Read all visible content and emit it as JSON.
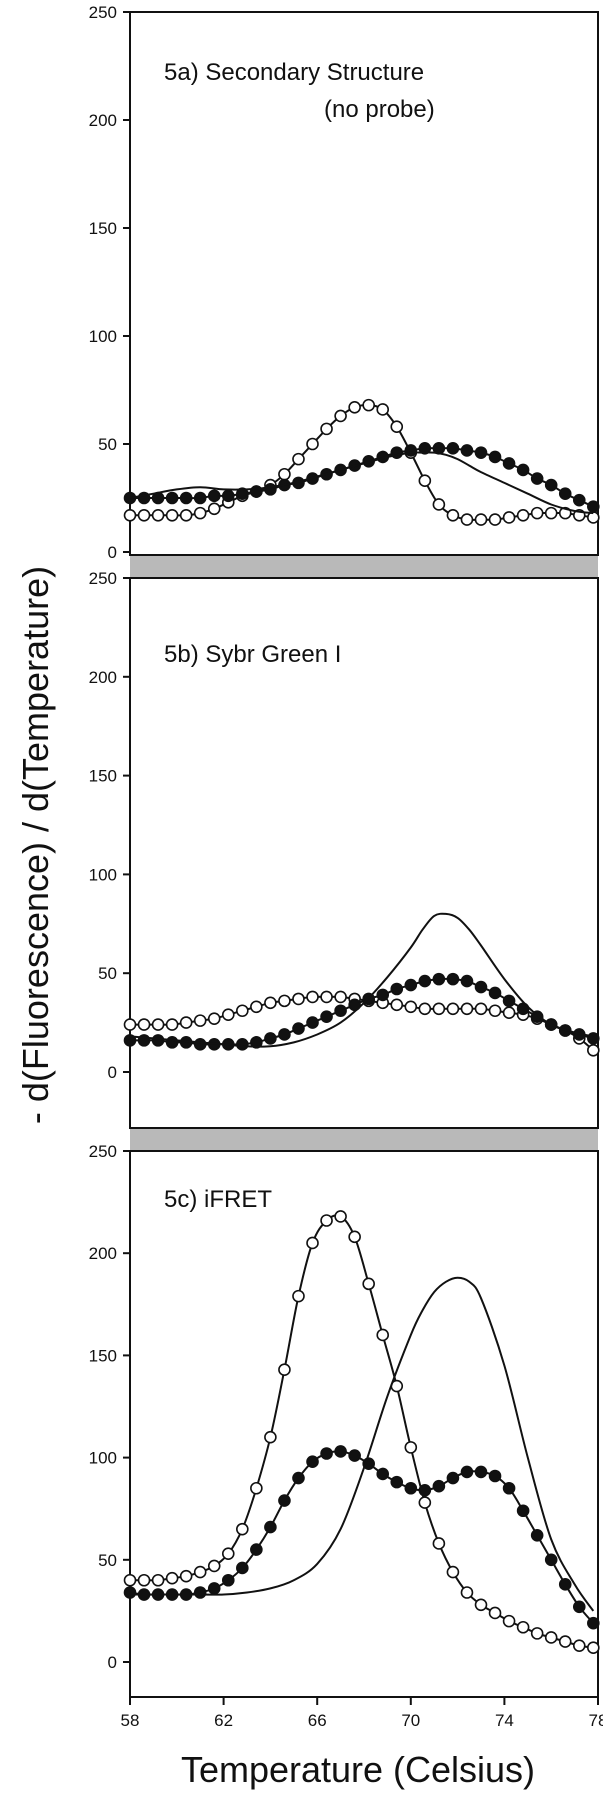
{
  "figure": {
    "ylabel": "- d(Fluorescence) / d(Temperature)",
    "xlabel": "Temperature (Celsius)"
  },
  "chart_data": [
    {
      "type": "line",
      "title": "5a) Secondary Structure",
      "subtitle": "(no probe)",
      "ylim": [
        0,
        250
      ],
      "xlim": [
        58,
        78
      ],
      "yticks": [
        0,
        50,
        100,
        150,
        200,
        250
      ],
      "xticks": [],
      "series": [
        {
          "marker": "open-circle",
          "x": [
            58,
            58.6,
            59.2,
            59.8,
            60.4,
            61,
            61.6,
            62.2,
            62.8,
            63.4,
            64,
            64.6,
            65.2,
            65.8,
            66.4,
            67,
            67.6,
            68.2,
            68.8,
            69.4,
            70,
            70.6,
            71.2,
            71.8,
            72.4,
            73,
            73.6,
            74.2,
            74.8,
            75.4,
            76,
            76.6,
            77.2,
            77.8
          ],
          "values": [
            17,
            17,
            17,
            17,
            17,
            18,
            20,
            23,
            26,
            28,
            31,
            36,
            43,
            50,
            57,
            63,
            67,
            68,
            66,
            58,
            46,
            33,
            22,
            17,
            15,
            15,
            15,
            16,
            17,
            18,
            18,
            18,
            17,
            16
          ]
        },
        {
          "marker": "filled-circle",
          "x": [
            58,
            58.6,
            59.2,
            59.8,
            60.4,
            61,
            61.6,
            62.2,
            62.8,
            63.4,
            64,
            64.6,
            65.2,
            65.8,
            66.4,
            67,
            67.6,
            68.2,
            68.8,
            69.4,
            70,
            70.6,
            71.2,
            71.8,
            72.4,
            73,
            73.6,
            74.2,
            74.8,
            75.4,
            76,
            76.6,
            77.2,
            77.8
          ],
          "values": [
            25,
            25,
            25,
            25,
            25,
            25,
            26,
            26,
            27,
            28,
            29,
            31,
            32,
            34,
            36,
            38,
            40,
            42,
            44,
            46,
            47,
            48,
            48,
            48,
            47,
            46,
            44,
            41,
            38,
            34,
            31,
            27,
            24,
            21
          ]
        },
        {
          "marker": "none",
          "x": [
            58,
            59,
            60,
            61,
            62,
            63,
            64,
            65,
            66,
            67,
            68,
            69,
            70,
            70.5,
            71,
            71.5,
            72,
            72.5,
            73,
            74,
            75,
            76,
            77,
            77.8
          ],
          "values": [
            25,
            27,
            29,
            30,
            29,
            29,
            30,
            32,
            35,
            38,
            41,
            44,
            46,
            46,
            46,
            45,
            43,
            40,
            37,
            32,
            27,
            22,
            19,
            18
          ]
        }
      ]
    },
    {
      "type": "line",
      "title": "5b) Sybr Green I",
      "ylim": [
        0,
        250
      ],
      "xlim": [
        58,
        78
      ],
      "yticks": [
        0,
        50,
        100,
        150,
        200,
        250
      ],
      "xticks": [],
      "series": [
        {
          "marker": "open-circle",
          "x": [
            58,
            58.6,
            59.2,
            59.8,
            60.4,
            61,
            61.6,
            62.2,
            62.8,
            63.4,
            64,
            64.6,
            65.2,
            65.8,
            66.4,
            67,
            67.6,
            68.2,
            68.8,
            69.4,
            70,
            70.6,
            71.2,
            71.8,
            72.4,
            73,
            73.6,
            74.2,
            74.8,
            75.4,
            76,
            76.6,
            77.2,
            77.8
          ],
          "values": [
            24,
            24,
            24,
            24,
            25,
            26,
            27,
            29,
            31,
            33,
            35,
            36,
            37,
            38,
            38,
            38,
            37,
            36,
            35,
            34,
            33,
            32,
            32,
            32,
            32,
            32,
            31,
            30,
            29,
            27,
            24,
            21,
            17,
            11
          ]
        },
        {
          "marker": "filled-circle",
          "x": [
            58,
            58.6,
            59.2,
            59.8,
            60.4,
            61,
            61.6,
            62.2,
            62.8,
            63.4,
            64,
            64.6,
            65.2,
            65.8,
            66.4,
            67,
            67.6,
            68.2,
            68.8,
            69.4,
            70,
            70.6,
            71.2,
            71.8,
            72.4,
            73,
            73.6,
            74.2,
            74.8,
            75.4,
            76,
            76.6,
            77.2,
            77.8
          ],
          "values": [
            16,
            16,
            16,
            15,
            15,
            14,
            14,
            14,
            14,
            15,
            17,
            19,
            22,
            25,
            28,
            31,
            34,
            37,
            39,
            42,
            44,
            46,
            47,
            47,
            46,
            43,
            40,
            36,
            32,
            28,
            24,
            21,
            19,
            17
          ]
        },
        {
          "marker": "none",
          "x": [
            58,
            59,
            60,
            61,
            62,
            63,
            64,
            65,
            66,
            67,
            68,
            69,
            70,
            70.5,
            71,
            71.5,
            72,
            72.5,
            73,
            74,
            75,
            76,
            77,
            77.8
          ],
          "values": [
            18,
            17,
            16,
            15,
            14,
            13,
            13,
            15,
            19,
            25,
            35,
            48,
            63,
            72,
            79,
            80,
            78,
            72,
            64,
            47,
            33,
            24,
            20,
            18
          ]
        }
      ]
    },
    {
      "type": "line",
      "title": "5c) iFRET",
      "ylim": [
        0,
        250
      ],
      "xlim": [
        58,
        78
      ],
      "yticks": [
        0,
        50,
        100,
        150,
        200,
        250
      ],
      "xticks": [
        58,
        62,
        66,
        70,
        74,
        78
      ],
      "series": [
        {
          "marker": "open-circle",
          "x": [
            58,
            58.6,
            59.2,
            59.8,
            60.4,
            61,
            61.6,
            62.2,
            62.8,
            63.4,
            64,
            64.6,
            65.2,
            65.8,
            66.4,
            67,
            67.6,
            68.2,
            68.8,
            69.4,
            70,
            70.6,
            71.2,
            71.8,
            72.4,
            73,
            73.6,
            74.2,
            74.8,
            75.4,
            76,
            76.6,
            77.2,
            77.8
          ],
          "values": [
            40,
            40,
            40,
            41,
            42,
            44,
            47,
            53,
            65,
            85,
            110,
            143,
            179,
            205,
            216,
            218,
            208,
            185,
            160,
            135,
            105,
            78,
            58,
            44,
            34,
            28,
            24,
            20,
            17,
            14,
            12,
            10,
            8,
            7
          ]
        },
        {
          "marker": "filled-circle",
          "x": [
            58,
            58.6,
            59.2,
            59.8,
            60.4,
            61,
            61.6,
            62.2,
            62.8,
            63.4,
            64,
            64.6,
            65.2,
            65.8,
            66.4,
            67,
            67.6,
            68.2,
            68.8,
            69.4,
            70,
            70.6,
            71.2,
            71.8,
            72.4,
            73,
            73.6,
            74.2,
            74.8,
            75.4,
            76,
            76.6,
            77.2,
            77.8
          ],
          "values": [
            34,
            33,
            33,
            33,
            33,
            34,
            36,
            40,
            46,
            55,
            66,
            79,
            90,
            98,
            102,
            103,
            101,
            97,
            92,
            88,
            85,
            84,
            86,
            90,
            93,
            93,
            91,
            85,
            74,
            62,
            50,
            38,
            27,
            19
          ]
        },
        {
          "marker": "none",
          "x": [
            58,
            59,
            60,
            61,
            62,
            63,
            64,
            65,
            66,
            67,
            68,
            69,
            70,
            70.5,
            71,
            71.5,
            72,
            72.5,
            73,
            74,
            75,
            76,
            77,
            77.8
          ],
          "values": [
            33,
            33,
            33,
            33,
            33,
            34,
            36,
            40,
            48,
            65,
            95,
            130,
            160,
            172,
            181,
            186,
            188,
            186,
            178,
            145,
            100,
            60,
            38,
            25
          ]
        }
      ]
    }
  ]
}
